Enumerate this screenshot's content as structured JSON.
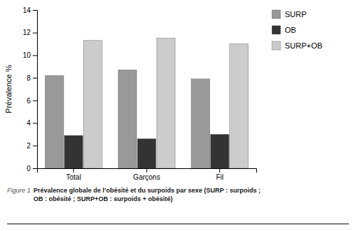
{
  "chart_data": {
    "type": "bar",
    "categories": [
      "Total",
      "Garçons",
      "Fil"
    ],
    "series": [
      {
        "name": "SURP",
        "color": "#999999",
        "values": [
          8.2,
          8.7,
          7.9
        ]
      },
      {
        "name": "OB",
        "color": "#333333",
        "values": [
          2.9,
          2.6,
          3.0
        ]
      },
      {
        "name": "SURP+OB",
        "color": "#cccccc",
        "values": [
          11.3,
          11.5,
          11.0
        ]
      }
    ],
    "ylabel": "Prévalence %",
    "ylim": [
      0,
      14
    ],
    "yticks": [
      0,
      2,
      4,
      6,
      8,
      10,
      12,
      14
    ],
    "grid": false,
    "legend": "right",
    "annotations": [
      "Figure 1",
      "Prévalence globale de l’obésité et du surpoids par sexe (SURP : surpoids ;\nOB : obésité ; SURP+OB : surpoids + obésité)"
    ]
  }
}
